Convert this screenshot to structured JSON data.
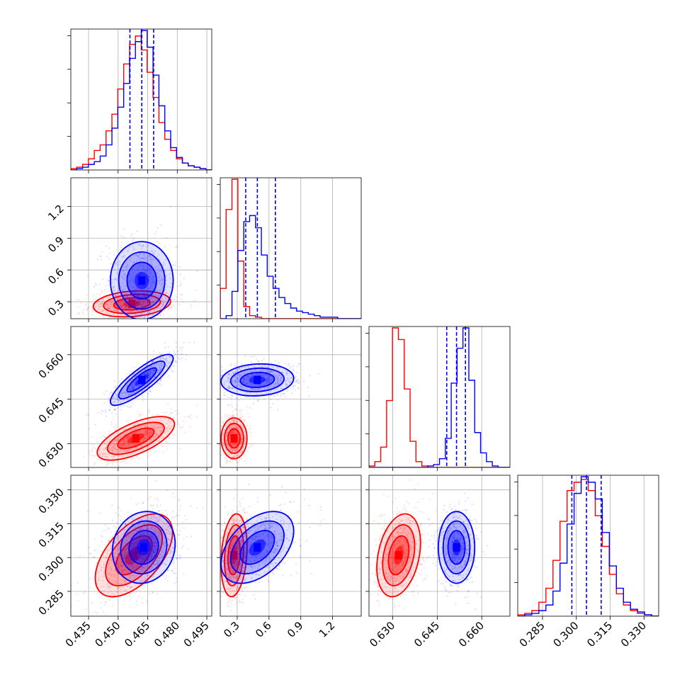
{
  "chart_data": {
    "type": "corner",
    "grid": true,
    "colors": {
      "series_a": "#0000ff",
      "series_b": "#ff0000",
      "grid": "#b0b0b0"
    },
    "series": [
      {
        "color": "#0000ff",
        "quantiles_dashed": [
          [
            0.456,
            0.462,
            0.468
          ],
          [
            0.38,
            0.49,
            0.66
          ],
          [
            0.6482,
            0.6515,
            0.6545
          ],
          [
            0.298,
            0.3045,
            0.311
          ]
        ],
        "centers": [
          0.462,
          0.49,
          0.6515,
          0.3045
        ]
      },
      {
        "color": "#ff0000",
        "centers": [
          0.458,
          0.27,
          0.632,
          0.301
        ]
      }
    ],
    "parameters": [
      {
        "ticks": [
          "0.435",
          "0.450",
          "0.465",
          "0.480",
          "0.495"
        ],
        "tick_values": [
          0.435,
          0.45,
          0.465,
          0.48,
          0.495
        ],
        "range": [
          0.426,
          0.4975
        ]
      },
      {
        "ticks": [
          "0.3",
          "0.6",
          "0.9",
          "1.2"
        ],
        "tick_values": [
          0.3,
          0.6,
          0.9,
          1.2
        ],
        "range": [
          0.14,
          1.47
        ]
      },
      {
        "ticks": [
          "0.630",
          "0.645",
          "0.660"
        ],
        "tick_values": [
          0.63,
          0.645,
          0.66
        ],
        "range": [
          0.622,
          0.6695
        ]
      },
      {
        "ticks": [
          "0.285",
          "0.300",
          "0.315",
          "0.330"
        ],
        "tick_values": [
          0.285,
          0.3,
          0.315,
          0.33
        ],
        "range": [
          0.274,
          0.3365
        ]
      }
    ],
    "histograms": [
      {
        "bins": [
          0.426,
          0.4975
        ],
        "blue": [
          0,
          1,
          2,
          4,
          6,
          10,
          18,
          30,
          45,
          62,
          80,
          92,
          100,
          88,
          68,
          46,
          28,
          16,
          9,
          5,
          3,
          2,
          1,
          0
        ],
        "red": [
          1,
          2,
          4,
          8,
          14,
          18,
          28,
          40,
          58,
          76,
          90,
          96,
          86,
          70,
          52,
          34,
          22,
          14,
          8,
          5,
          3,
          2,
          1,
          0
        ]
      },
      {
        "bins": [
          0.14,
          1.47
        ],
        "blue": [
          0,
          2,
          18,
          45,
          64,
          68,
          60,
          42,
          28,
          20,
          14,
          10,
          7,
          5,
          4,
          3,
          2,
          1,
          1,
          1,
          0,
          0,
          0,
          0
        ],
        "red": [
          20,
          72,
          92,
          38,
          8,
          2,
          1,
          0,
          0,
          0,
          0,
          0,
          0,
          0,
          0,
          0,
          0,
          0,
          0,
          0,
          0,
          0,
          0,
          0
        ]
      },
      {
        "bins": [
          0.622,
          0.6695
        ],
        "blue": [
          0,
          0,
          0,
          0,
          0,
          0,
          0,
          0,
          0,
          0,
          1,
          2,
          6,
          20,
          58,
          82,
          96,
          60,
          24,
          10,
          4,
          1,
          0,
          0
        ],
        "red": [
          1,
          4,
          14,
          46,
          96,
          88,
          54,
          18,
          4,
          1,
          0,
          0,
          0,
          0,
          0,
          0,
          0,
          0,
          0,
          0,
          0,
          0,
          0,
          0
        ]
      },
      {
        "bins": [
          0.274,
          0.3365
        ],
        "blue": [
          0,
          1,
          2,
          4,
          8,
          18,
          38,
          66,
          88,
          100,
          96,
          84,
          60,
          36,
          20,
          10,
          5,
          3,
          1,
          0
        ],
        "red": [
          1,
          2,
          4,
          10,
          20,
          40,
          68,
          90,
          96,
          98,
          90,
          72,
          50,
          30,
          16,
          8,
          4,
          2,
          1,
          0
        ]
      }
    ],
    "contour_panels": [
      {
        "row": 1,
        "col": 0,
        "blue": {
          "cx": 0.462,
          "cy": 0.5,
          "sx": 0.0065,
          "sy": 0.15,
          "rho": 0.0
        },
        "red": {
          "cx": 0.457,
          "cy": 0.28,
          "sx": 0.008,
          "sy": 0.05,
          "rho": 0.2
        }
      },
      {
        "row": 2,
        "col": 0,
        "blue": {
          "cx": 0.462,
          "cy": 0.6515,
          "sx": 0.0065,
          "sy": 0.0035,
          "rho": 0.85
        },
        "red": {
          "cx": 0.459,
          "cy": 0.6318,
          "sx": 0.008,
          "sy": 0.003,
          "rho": 0.65
        }
      },
      {
        "row": 2,
        "col": 1,
        "blue": {
          "cx": 0.49,
          "cy": 0.6515,
          "sx": 0.14,
          "sy": 0.0022,
          "rho": 0.1
        },
        "red": {
          "cx": 0.27,
          "cy": 0.6318,
          "sx": 0.05,
          "sy": 0.0028,
          "rho": 0.0
        }
      },
      {
        "row": 3,
        "col": 0,
        "blue": {
          "cx": 0.463,
          "cy": 0.3045,
          "sx": 0.0065,
          "sy": 0.0065,
          "rho": 0.1
        },
        "red": {
          "cx": 0.458,
          "cy": 0.301,
          "sx": 0.008,
          "sy": 0.0075,
          "rho": 0.55
        }
      },
      {
        "row": 3,
        "col": 1,
        "blue": {
          "cx": 0.49,
          "cy": 0.3045,
          "sx": 0.14,
          "sy": 0.0065,
          "rho": 0.45
        },
        "red": {
          "cx": 0.27,
          "cy": 0.301,
          "sx": 0.05,
          "sy": 0.0075,
          "rho": 0.2
        }
      },
      {
        "row": 3,
        "col": 2,
        "blue": {
          "cx": 0.6515,
          "cy": 0.3045,
          "sx": 0.0025,
          "sy": 0.0065,
          "rho": 0.0
        },
        "red": {
          "cx": 0.632,
          "cy": 0.301,
          "sx": 0.003,
          "sy": 0.0075,
          "rho": 0.3
        }
      }
    ]
  }
}
